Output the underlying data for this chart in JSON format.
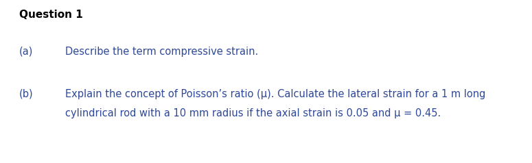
{
  "background_color": "#ffffff",
  "title": "Question 1",
  "title_color": "#000000",
  "title_fontsize": 11,
  "label_color": "#2e4899",
  "text_color": "#2e4899",
  "text_fontsize": 10.5,
  "label_a": "(a)",
  "label_b": "(b)",
  "text_a": "Describe the term compressive strain.",
  "text_b_line1": "Explain the concept of Poisson’s ratio (μ). Calculate the lateral strain for a 1 m long",
  "text_b_line2": "cylindrical rod with a 10 mm radius if the axial strain is 0.05 and μ = 0.45.",
  "fig_width": 7.75,
  "fig_height": 2.38,
  "dpi": 100
}
